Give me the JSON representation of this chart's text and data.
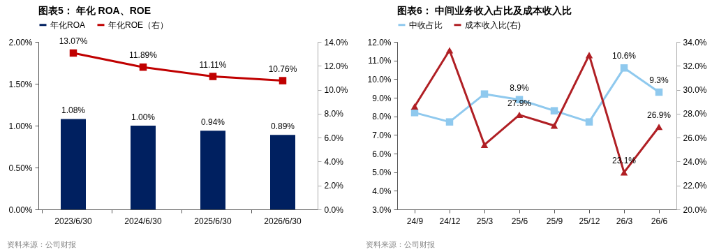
{
  "chart_data": [
    {
      "type": "bar",
      "title": "图表5：  年化 ROA、ROE",
      "categories": [
        "2023/6/30",
        "2024/6/30",
        "2025/6/30",
        "2026/6/30"
      ],
      "series": [
        {
          "name": "年化ROA",
          "color": "#002060",
          "values": [
            1.08,
            1.0,
            0.94,
            0.89
          ],
          "value_labels": [
            "1.08%",
            "1.00%",
            "0.94%",
            "0.89%"
          ]
        },
        {
          "name": "年化ROE（右）",
          "type": "line",
          "axis": "y2",
          "marker": "square",
          "color": "#c00000",
          "values": [
            13.07,
            11.89,
            11.11,
            10.76
          ],
          "value_labels": [
            "13.07%",
            "11.89%",
            "11.11%",
            "10.76%"
          ]
        }
      ],
      "ylim": [
        0,
        2
      ],
      "yticks": [
        {
          "value": 0,
          "label": "0.00%"
        },
        {
          "value": 0.5,
          "label": "0.50%"
        },
        {
          "value": 1,
          "label": "1.00%"
        },
        {
          "value": 1.5,
          "label": "1.50%"
        },
        {
          "value": 2,
          "label": "2.00%"
        }
      ],
      "y2lim": [
        0,
        14
      ],
      "y2ticks": [
        {
          "value": 0,
          "label": "0.0%"
        },
        {
          "value": 2,
          "label": "2.0%"
        },
        {
          "value": 4,
          "label": "4.0%"
        },
        {
          "value": 6,
          "label": "6.0%"
        },
        {
          "value": 8,
          "label": "8.0%"
        },
        {
          "value": 10,
          "label": "10.0%"
        },
        {
          "value": 12,
          "label": "12.0%"
        },
        {
          "value": 14,
          "label": "14.0%"
        }
      ],
      "legend": "top",
      "annotations": [
        "资料来源：公司财报"
      ]
    },
    {
      "type": "line",
      "title": "图表6：  中间业务收入占比及成本收入比",
      "categories": [
        "24/9",
        "24/12",
        "25/3",
        "25/6",
        "25/9",
        "25/12",
        "26/3",
        "26/6"
      ],
      "series": [
        {
          "name": "中收占比",
          "marker": "square",
          "color": "#8fc9ee",
          "values": [
            8.2,
            7.7,
            9.2,
            8.9,
            8.3,
            7.7,
            10.6,
            9.3
          ],
          "value_labels": [
            null,
            null,
            null,
            "8.9%",
            null,
            null,
            "10.6%",
            "9.3%"
          ]
        },
        {
          "name": "成本收入比(右)",
          "axis": "y2",
          "marker": "triangle",
          "color": "#b01f24",
          "values": [
            28.6,
            33.3,
            25.4,
            27.9,
            27.0,
            32.9,
            23.1,
            26.9
          ],
          "value_labels": [
            null,
            null,
            null,
            "27.9%",
            null,
            null,
            "23.1%",
            "26.9%"
          ]
        }
      ],
      "ylim": [
        3,
        12
      ],
      "yticks": [
        {
          "value": 3,
          "label": "3.0%"
        },
        {
          "value": 4,
          "label": "4.0%"
        },
        {
          "value": 5,
          "label": "5.0%"
        },
        {
          "value": 6,
          "label": "6.0%"
        },
        {
          "value": 7,
          "label": "7.0%"
        },
        {
          "value": 8,
          "label": "8.0%"
        },
        {
          "value": 9,
          "label": "9.0%"
        },
        {
          "value": 10,
          "label": "10.0%"
        },
        {
          "value": 11,
          "label": "11.0%"
        },
        {
          "value": 12,
          "label": "12.0%"
        }
      ],
      "y2lim": [
        20,
        34
      ],
      "y2ticks": [
        {
          "value": 20,
          "label": "20.0%"
        },
        {
          "value": 22,
          "label": "22.0%"
        },
        {
          "value": 24,
          "label": "24.0%"
        },
        {
          "value": 26,
          "label": "26.0%"
        },
        {
          "value": 28,
          "label": "28.0%"
        },
        {
          "value": 30,
          "label": "30.0%"
        },
        {
          "value": 32,
          "label": "32.0%"
        },
        {
          "value": 34,
          "label": "34.0%"
        }
      ],
      "legend": "top",
      "annotations": [
        "资料来源：公司财报"
      ]
    }
  ]
}
